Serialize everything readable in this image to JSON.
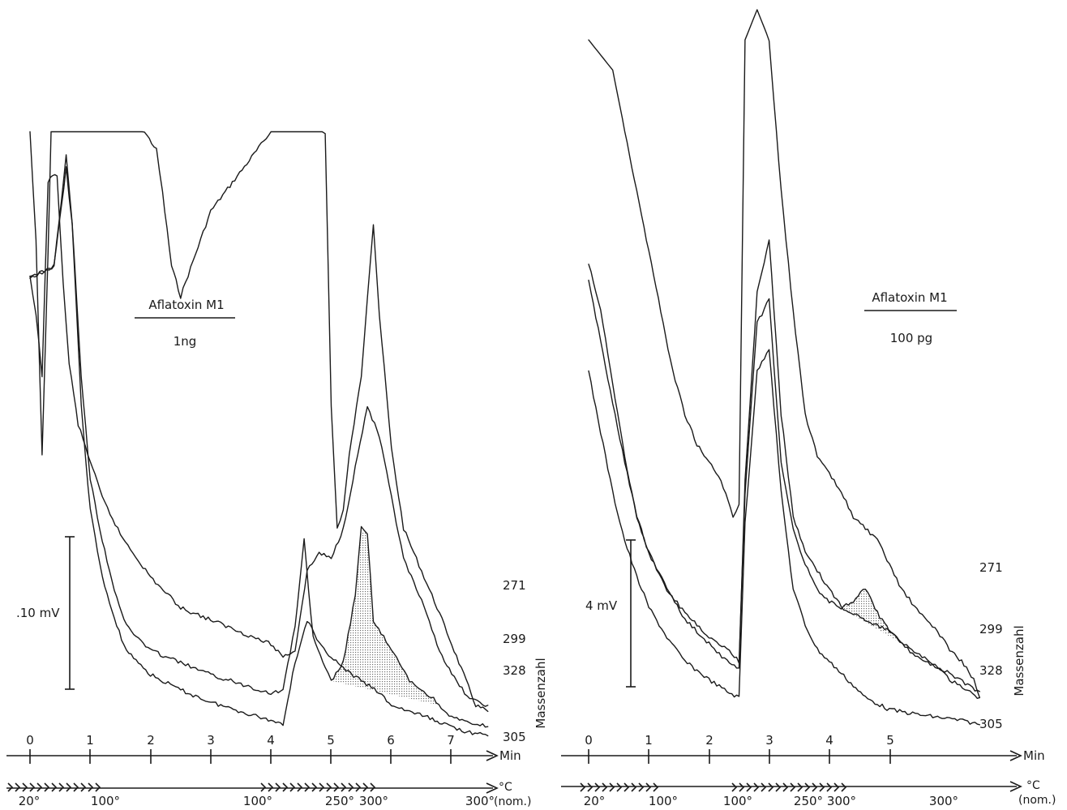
{
  "chart_data": [
    {
      "type": "line",
      "title": "Aflatoxin M1",
      "subtitle": "1ng",
      "scale_bar_label": ".10 mV",
      "series_axis_label": "Massenzahl",
      "x_axis": {
        "unit_label": "Min",
        "ticks": [
          "0",
          "1",
          "2",
          "3",
          "4",
          "5",
          "6",
          "7"
        ],
        "xlim": [
          0,
          7.6
        ]
      },
      "temperature_axis": {
        "unit_label": "°C",
        "unit_note": "(nom.)",
        "labels": [
          "20°",
          "100°",
          "100°",
          "250°",
          "300°",
          "300°"
        ]
      },
      "shaded_series": "328",
      "series": [
        {
          "name": "271",
          "x": [
            0.0,
            0.1,
            0.2,
            0.3,
            0.35,
            0.45,
            0.55,
            0.65,
            0.8,
            1.0,
            1.2,
            1.5,
            1.6,
            1.75,
            1.9,
            2.1,
            2.2,
            2.35,
            2.5,
            3.0,
            4.0,
            4.2,
            4.4,
            4.5,
            4.6,
            4.8,
            4.9,
            5.0,
            5.1,
            5.2,
            5.3,
            5.5,
            5.6,
            5.7,
            5.8,
            6.0,
            6.2,
            6.5,
            6.8,
            7.0,
            7.2,
            7.4,
            7.6
          ],
          "y": [
            100,
            82,
            47,
            80,
            100,
            100,
            100,
            100,
            100,
            100,
            100,
            100,
            100,
            100,
            100,
            97,
            90,
            78,
            73,
            87,
            100,
            100,
            100,
            100,
            100,
            100,
            100,
            55,
            35,
            38,
            47,
            60,
            73,
            85,
            70,
            48,
            35,
            28,
            21,
            16,
            11,
            6,
            5
          ]
        },
        {
          "name": "299",
          "x": [
            0.0,
            0.1,
            0.2,
            0.3,
            0.45,
            0.55,
            0.65,
            0.8,
            1.0,
            1.2,
            1.5,
            2.0,
            2.5,
            3.0,
            3.5,
            4.0,
            4.2,
            4.4,
            4.6,
            4.8,
            5.0,
            5.2,
            5.4,
            5.6,
            5.8,
            6.0,
            6.2,
            6.5,
            6.8,
            7.0,
            7.3,
            7.6
          ],
          "y": [
            76,
            70,
            60,
            92,
            93,
            75,
            62,
            52,
            46,
            40,
            34,
            27,
            22,
            20,
            18,
            16,
            14,
            15,
            28,
            31,
            30,
            35,
            45,
            55,
            50,
            40,
            30,
            23,
            15,
            11,
            7,
            6
          ]
        },
        {
          "name": "328",
          "x": [
            0.0,
            0.4,
            0.6,
            0.7,
            0.85,
            1.0,
            1.2,
            1.4,
            1.6,
            2.0,
            2.5,
            3.0,
            3.5,
            4.0,
            4.2,
            4.4,
            4.55,
            4.7,
            4.9,
            5.0,
            5.2,
            5.4,
            5.5,
            5.6,
            5.7,
            6.0,
            6.3,
            6.7,
            7.0,
            7.3,
            7.6
          ],
          "y": [
            76,
            78,
            96,
            85,
            60,
            43,
            33,
            25,
            19,
            15,
            13,
            11,
            9.5,
            8,
            8.5,
            19,
            33,
            17,
            12,
            10,
            13,
            24,
            35,
            34,
            20,
            15,
            10,
            7,
            4,
            3,
            2.5
          ]
        },
        {
          "name": "305",
          "x": [
            0.0,
            0.4,
            0.6,
            0.7,
            0.85,
            1.0,
            1.2,
            1.4,
            1.6,
            2.0,
            2.5,
            3.0,
            3.5,
            4.0,
            4.2,
            4.4,
            4.6,
            4.8,
            5.0,
            5.2,
            5.5,
            5.8,
            6.0,
            6.3,
            6.6,
            7.0,
            7.3,
            7.6
          ],
          "y": [
            76,
            78,
            94,
            85,
            55,
            38,
            27,
            20,
            15,
            11,
            8.5,
            6.5,
            5,
            3.5,
            3,
            13,
            20,
            16,
            14,
            12,
            10,
            8,
            6,
            5,
            4,
            2.5,
            1.5,
            1
          ]
        }
      ],
      "grid": false
    },
    {
      "type": "line",
      "title": "Aflatoxin M1",
      "subtitle": "100 pg",
      "scale_bar_label": "4 mV",
      "series_axis_label": "Massenzahl",
      "x_axis": {
        "unit_label": "Min",
        "ticks": [
          "0",
          "1",
          "2",
          "3",
          "4",
          "5"
        ],
        "xlim": [
          0,
          7.0
        ]
      },
      "temperature_axis": {
        "unit_label": "°C",
        "unit_note": "(nom.)",
        "labels": [
          "20°",
          "100°",
          "100°",
          "250°",
          "300°",
          "300°"
        ]
      },
      "shaded_series": "328",
      "series": [
        {
          "name": "271",
          "x": [
            0.0,
            0.4,
            0.6,
            0.8,
            1.0,
            1.2,
            1.4,
            1.6,
            1.8,
            2.0,
            2.2,
            2.4,
            2.5,
            2.6,
            2.8,
            3.0,
            3.2,
            3.4,
            3.6,
            3.8,
            4.0,
            4.2,
            4.4,
            4.6,
            4.8,
            5.0,
            5.2,
            5.5,
            5.8,
            6.0,
            6.2,
            6.4,
            6.5
          ],
          "y": [
            115,
            110,
            100,
            90,
            80,
            70,
            60,
            53,
            48,
            45,
            42,
            36,
            38,
            115,
            120,
            115,
            90,
            70,
            53,
            46,
            43,
            40,
            36,
            34,
            32,
            28,
            24,
            20,
            17,
            14,
            12,
            9,
            6
          ]
        },
        {
          "name": "299",
          "x": [
            0.0,
            0.2,
            0.4,
            0.6,
            0.8,
            1.0,
            1.3,
            1.6,
            2.0,
            2.3,
            2.5,
            2.6,
            2.8,
            3.0,
            3.2,
            3.4,
            3.6,
            3.8,
            4.0,
            4.2,
            4.4,
            4.6,
            4.8,
            5.0,
            5.3,
            5.6,
            6.0,
            6.3,
            6.5
          ],
          "y": [
            75,
            65,
            55,
            45,
            36,
            30,
            24,
            19,
            15,
            12,
            11,
            42,
            73,
            82,
            53,
            36,
            30,
            27,
            24,
            21,
            20,
            19,
            18,
            17,
            14,
            12,
            10,
            8,
            7
          ]
        },
        {
          "name": "328",
          "x": [
            0.0,
            0.2,
            0.4,
            0.6,
            0.8,
            1.0,
            1.3,
            1.6,
            2.0,
            2.3,
            2.5,
            2.6,
            2.8,
            3.0,
            3.2,
            3.4,
            3.6,
            3.8,
            4.0,
            4.2,
            4.4,
            4.6,
            4.8,
            5.0,
            5.2,
            5.5,
            5.8,
            6.0,
            6.3,
            6.5
          ],
          "y": [
            78,
            70,
            58,
            46,
            36,
            30,
            24,
            20,
            16,
            14,
            12,
            40,
            68,
            72,
            45,
            34,
            28,
            24,
            22,
            21,
            22,
            24,
            20,
            17,
            15,
            13,
            11,
            9,
            7,
            6
          ]
        },
        {
          "name": "305",
          "x": [
            0.0,
            0.2,
            0.4,
            0.6,
            0.8,
            1.0,
            1.3,
            1.6,
            2.0,
            2.3,
            2.5,
            2.6,
            2.8,
            3.0,
            3.2,
            3.4,
            3.6,
            3.8,
            4.0,
            4.2,
            4.4,
            4.6,
            4.8,
            5.0,
            5.3,
            5.6,
            6.0,
            6.3,
            6.5
          ],
          "y": [
            60,
            50,
            40,
            32,
            26,
            21,
            16,
            12,
            9,
            7,
            6,
            35,
            60,
            64,
            40,
            24,
            18,
            14,
            12,
            10,
            8,
            6,
            5,
            4,
            3.5,
            3,
            2.5,
            2,
            1.5
          ]
        }
      ],
      "grid": false
    }
  ]
}
